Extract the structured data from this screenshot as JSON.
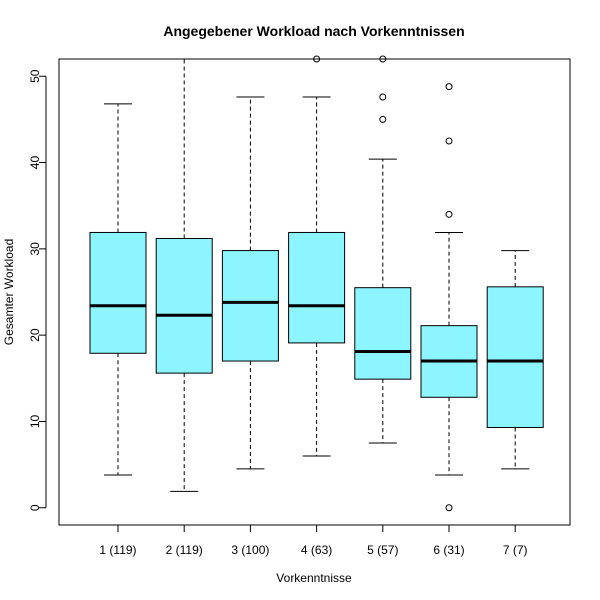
{
  "chart_data": {
    "type": "boxplot",
    "title": "Angegebener Workload nach Vorkenntnissen",
    "xlabel": "Vorkenntnisse",
    "ylabel": "Gesamter Workload",
    "ylim": [
      -2,
      52
    ],
    "yticks": [
      0,
      10,
      20,
      30,
      40,
      50
    ],
    "box_color": "#8CF5FF",
    "categories": [
      "1 (119)",
      "2 (119)",
      "3 (100)",
      "4 (63)",
      "5 (57)",
      "6 (31)",
      "7 (7)"
    ],
    "boxes": [
      {
        "whisker_low": 3.8,
        "q1": 17.9,
        "median": 23.4,
        "q3": 31.9,
        "whisker_high": 46.8,
        "outliers": []
      },
      {
        "whisker_low": 1.9,
        "q1": 15.6,
        "median": 22.3,
        "q3": 31.2,
        "whisker_high": 52.0,
        "outliers": []
      },
      {
        "whisker_low": 4.5,
        "q1": 17.0,
        "median": 23.8,
        "q3": 29.8,
        "whisker_high": 47.6,
        "outliers": []
      },
      {
        "whisker_low": 6.0,
        "q1": 19.1,
        "median": 23.4,
        "q3": 31.9,
        "whisker_high": 47.6,
        "outliers": [
          52.0
        ]
      },
      {
        "whisker_low": 7.5,
        "q1": 14.9,
        "median": 18.1,
        "q3": 25.5,
        "whisker_high": 40.4,
        "outliers": [
          52.0,
          47.6,
          45.0
        ]
      },
      {
        "whisker_low": 3.8,
        "q1": 12.8,
        "median": 17.0,
        "q3": 21.1,
        "whisker_high": 31.9,
        "outliers": [
          48.8,
          42.5,
          34.0,
          0.0
        ]
      },
      {
        "whisker_low": 4.5,
        "q1": 9.3,
        "median": 17.0,
        "q3": 25.6,
        "whisker_high": 29.8,
        "outliers": []
      }
    ]
  }
}
